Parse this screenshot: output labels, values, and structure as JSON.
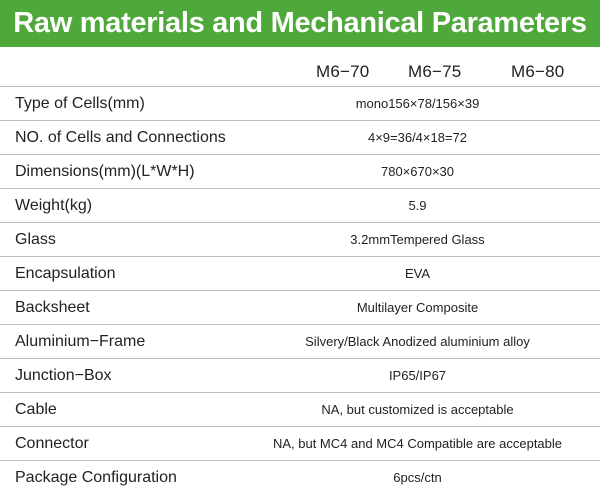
{
  "title": "Raw materials and Mechanical Parameters",
  "models": [
    "M6−70",
    "M6−75",
    "M6−80"
  ],
  "rows": [
    {
      "label": "Type of Cells(mm)",
      "value": "mono156×78/156×39"
    },
    {
      "label": "NO. of Cells and Connections",
      "value": "4×9=36/4×18=72"
    },
    {
      "label": "Dimensions(mm)(L*W*H)",
      "value": "780×670×30"
    },
    {
      "label": "Weight(kg)",
      "value": "5.9"
    },
    {
      "label": "Glass",
      "value": "3.2mmTempered Glass"
    },
    {
      "label": "Encapsulation",
      "value": "EVA"
    },
    {
      "label": "Backsheet",
      "value": "Multilayer Composite"
    },
    {
      "label": "Aluminium−Frame",
      "value": "Silvery/Black Anodized aluminium alloy"
    },
    {
      "label": "Junction−Box",
      "value": "IP65/IP67"
    },
    {
      "label": "Cable",
      "value": "NA, but customized is acceptable"
    },
    {
      "label": "Connector",
      "value": "NA, but MC4 and MC4 Compatible are acceptable"
    },
    {
      "label": "Package Configuration",
      "value": "6pcs/ctn"
    }
  ],
  "colors": {
    "header_green": "#4ea83a",
    "header_text": "#ffffff",
    "row_divider": "#bdbdbd",
    "text": "#222222"
  }
}
